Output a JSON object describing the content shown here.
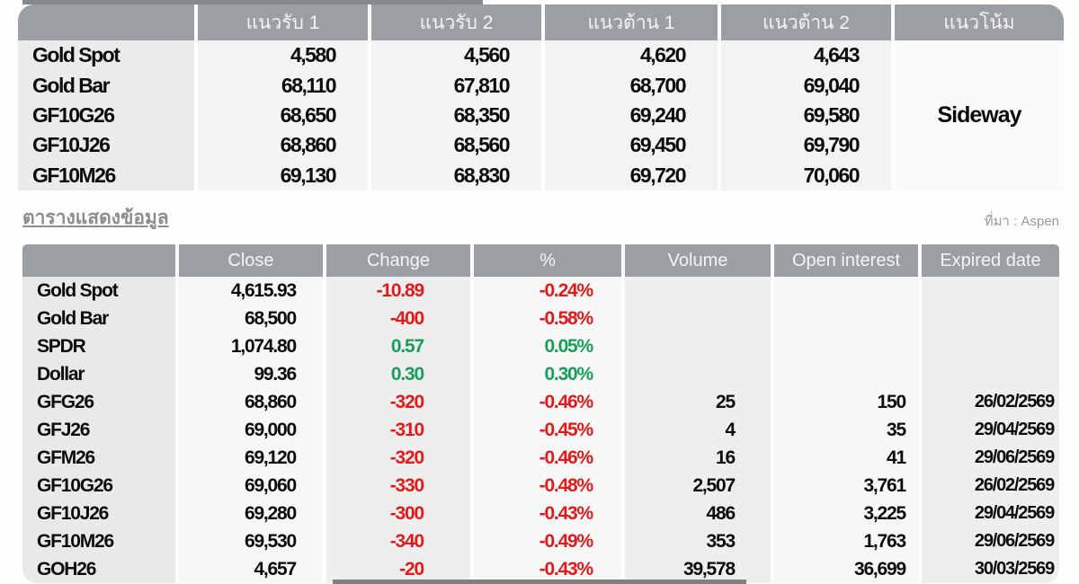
{
  "page": {
    "section_title": "ตารางแสดงข้อมูล",
    "source_label": "ที่มา : Aspen"
  },
  "colors": {
    "header_bg": "#9b9ea3",
    "negative": "#e11b1b",
    "positive": "#17a05a"
  },
  "support_table": {
    "headers": {
      "support1": "แนวรับ 1",
      "support2": "แนวรับ 2",
      "resistance1": "แนวต้าน 1",
      "resistance2": "แนวต้าน 2",
      "trend": "แนวโน้ม"
    },
    "trend_value": "Sideway",
    "rows": [
      {
        "name": "Gold Spot",
        "support1": "4,580",
        "support2": "4,560",
        "resistance1": "4,620",
        "resistance2": "4,643"
      },
      {
        "name": "Gold Bar",
        "support1": "68,110",
        "support2": "67,810",
        "resistance1": "68,700",
        "resistance2": "69,040"
      },
      {
        "name": "GF10G26",
        "support1": "68,650",
        "support2": "68,350",
        "resistance1": "69,240",
        "resistance2": "69,580"
      },
      {
        "name": "GF10J26",
        "support1": "68,860",
        "support2": "68,560",
        "resistance1": "69,450",
        "resistance2": "69,790"
      },
      {
        "name": "GF10M26",
        "support1": "69,130",
        "support2": "68,830",
        "resistance1": "69,720",
        "resistance2": "70,060"
      }
    ]
  },
  "data_table": {
    "headers": {
      "close": "Close",
      "change": "Change",
      "percent": "%",
      "volume": "Volume",
      "open_interest": "Open interest",
      "expired_date": "Expired date"
    },
    "rows": [
      {
        "name": "Gold Spot",
        "close": "4,615.93",
        "change": "-10.89",
        "percent": "-0.24%",
        "volume": "",
        "open_interest": "",
        "expired_date": "",
        "direction": "down"
      },
      {
        "name": "Gold Bar",
        "close": "68,500",
        "change": "-400",
        "percent": "-0.58%",
        "volume": "",
        "open_interest": "",
        "expired_date": "",
        "direction": "down"
      },
      {
        "name": "SPDR",
        "close": "1,074.80",
        "change": "0.57",
        "percent": "0.05%",
        "volume": "",
        "open_interest": "",
        "expired_date": "",
        "direction": "up"
      },
      {
        "name": "Dollar",
        "close": "99.36",
        "change": "0.30",
        "percent": "0.30%",
        "volume": "",
        "open_interest": "",
        "expired_date": "",
        "direction": "up"
      },
      {
        "name": "GFG26",
        "close": "68,860",
        "change": "-320",
        "percent": "-0.46%",
        "volume": "25",
        "open_interest": "150",
        "expired_date": "26/02/2569",
        "direction": "down"
      },
      {
        "name": "GFJ26",
        "close": "69,000",
        "change": "-310",
        "percent": "-0.45%",
        "volume": "4",
        "open_interest": "35",
        "expired_date": "29/04/2569",
        "direction": "down"
      },
      {
        "name": "GFM26",
        "close": "69,120",
        "change": "-320",
        "percent": "-0.46%",
        "volume": "16",
        "open_interest": "41",
        "expired_date": "29/06/2569",
        "direction": "down"
      },
      {
        "name": "GF10G26",
        "close": "69,060",
        "change": "-330",
        "percent": "-0.48%",
        "volume": "2,507",
        "open_interest": "3,761",
        "expired_date": "26/02/2569",
        "direction": "down"
      },
      {
        "name": "GF10J26",
        "close": "69,280",
        "change": "-300",
        "percent": "-0.43%",
        "volume": "486",
        "open_interest": "3,225",
        "expired_date": "29/04/2569",
        "direction": "down"
      },
      {
        "name": "GF10M26",
        "close": "69,530",
        "change": "-340",
        "percent": "-0.49%",
        "volume": "353",
        "open_interest": "1,763",
        "expired_date": "29/06/2569",
        "direction": "down"
      },
      {
        "name": "GOH26",
        "close": "4,657",
        "change": "-20",
        "percent": "-0.43%",
        "volume": "39,578",
        "open_interest": "36,699",
        "expired_date": "30/03/2569",
        "direction": "down"
      }
    ]
  }
}
